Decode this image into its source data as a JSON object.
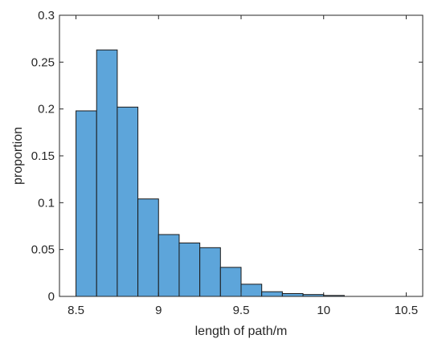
{
  "chart_data": {
    "type": "bar",
    "subtype": "histogram",
    "title": "",
    "xlabel": "length of path/m",
    "ylabel": "proportion",
    "xlim": [
      8.4,
      10.6
    ],
    "ylim": [
      0,
      0.3
    ],
    "xticks": [
      "8.5",
      "9",
      "9.5",
      "10",
      "10.5"
    ],
    "xtick_values": [
      8.5,
      9,
      9.5,
      10,
      10.5
    ],
    "yticks": [
      "0",
      "0.05",
      "0.1",
      "0.15",
      "0.2",
      "0.25",
      "0.3"
    ],
    "ytick_values": [
      0,
      0.05,
      0.1,
      0.15,
      0.2,
      0.25,
      0.3
    ],
    "bin_edges": [
      8.5,
      8.625,
      8.75,
      8.875,
      9.0,
      9.125,
      9.25,
      9.375,
      9.5,
      9.625,
      9.75,
      9.875,
      10.0,
      10.125
    ],
    "values": [
      0.198,
      0.263,
      0.202,
      0.104,
      0.066,
      0.057,
      0.052,
      0.031,
      0.013,
      0.005,
      0.003,
      0.002,
      0.001
    ],
    "bar_color": "#5da5da",
    "edge_color": "#1a1a1a",
    "grid": false
  }
}
